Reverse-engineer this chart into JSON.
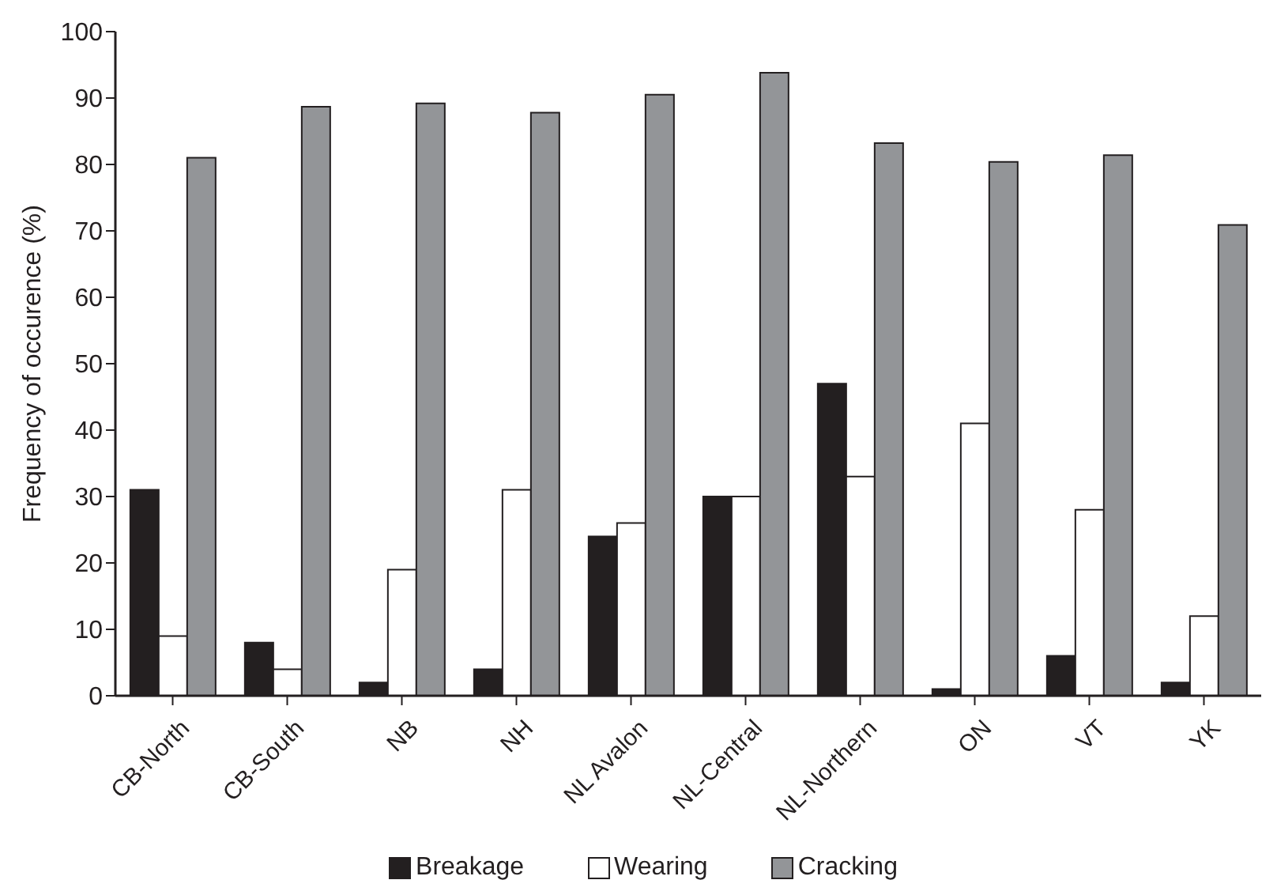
{
  "chart_data": {
    "type": "bar",
    "ylabel": "Frequency of occurence (%)",
    "categories": [
      "CB-North",
      "CB-South",
      "NB",
      "NH",
      "NL Avalon",
      "NL-Central",
      "NL-Northern",
      "ON",
      "VT",
      "YK"
    ],
    "series": [
      {
        "name": "Breakage",
        "color": "#231f20",
        "values": [
          31,
          8,
          2,
          4,
          24,
          30,
          47,
          1,
          6,
          2
        ]
      },
      {
        "name": "Wearing",
        "color": "#ffffff",
        "values": [
          9,
          4,
          19,
          31,
          26,
          30,
          33,
          41,
          28,
          12
        ]
      },
      {
        "name": "Cracking",
        "color": "#939598",
        "values": [
          81,
          88.7,
          89.2,
          87.8,
          90.5,
          93.8,
          83.2,
          80.4,
          81.4,
          70.9
        ]
      }
    ],
    "ylim": [
      0,
      100
    ],
    "yticks": [
      0,
      10,
      20,
      30,
      40,
      50,
      60,
      70,
      80,
      90,
      100
    ],
    "grid": false,
    "legend": "bottom"
  }
}
